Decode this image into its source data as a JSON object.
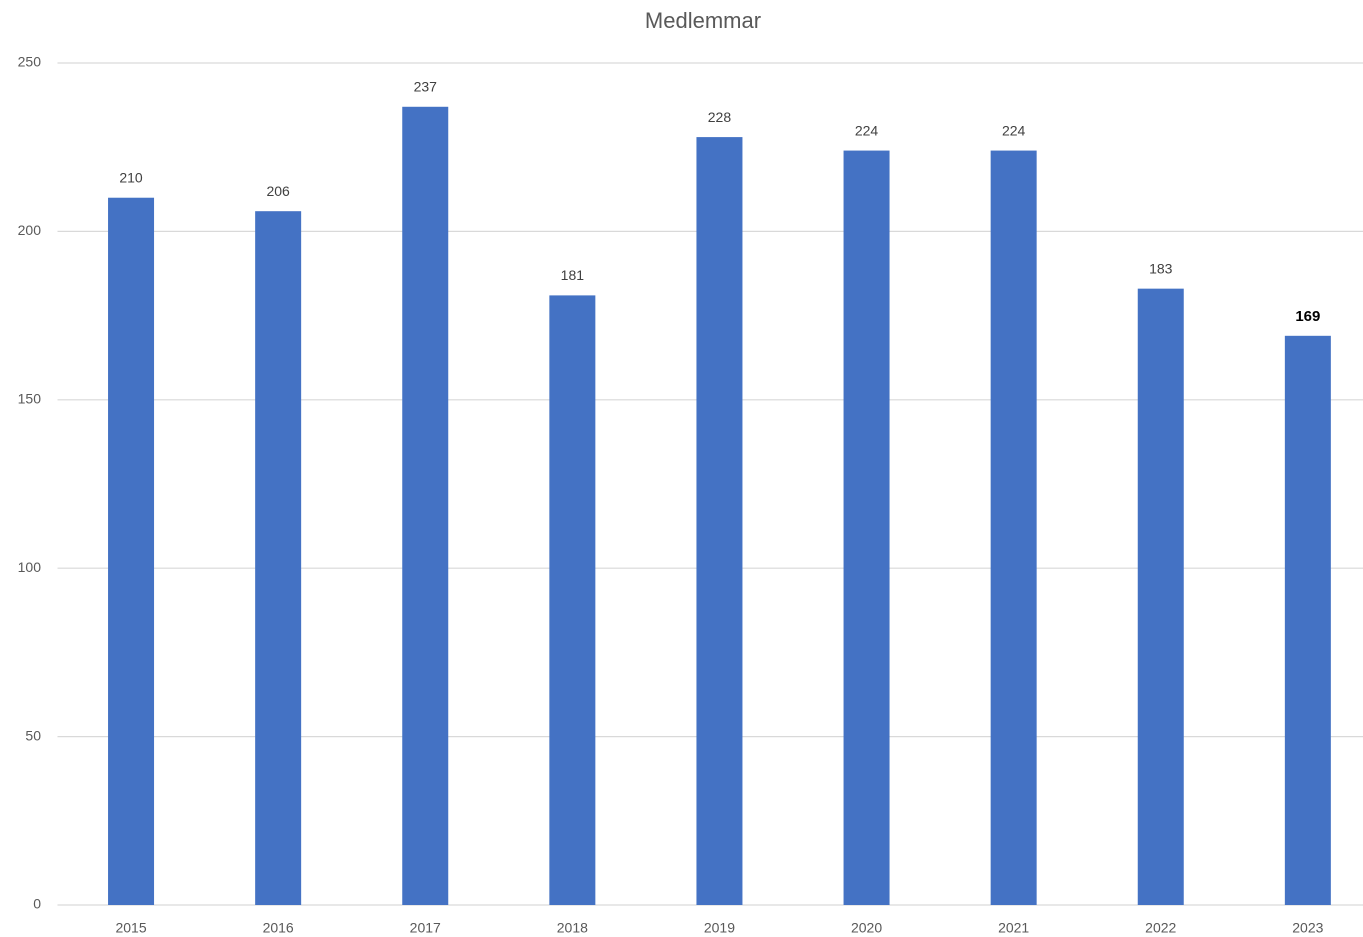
{
  "chart_data": {
    "type": "bar",
    "title": "Medlemmar",
    "categories": [
      "2015",
      "2016",
      "2017",
      "2018",
      "2019",
      "2020",
      "2021",
      "2022",
      "2023"
    ],
    "values": [
      210,
      206,
      237,
      181,
      228,
      224,
      224,
      183,
      169
    ],
    "color": "#4472c4",
    "ylim": [
      0,
      250
    ],
    "yticks": [
      0,
      50,
      100,
      150,
      200,
      250
    ],
    "grid": true
  }
}
